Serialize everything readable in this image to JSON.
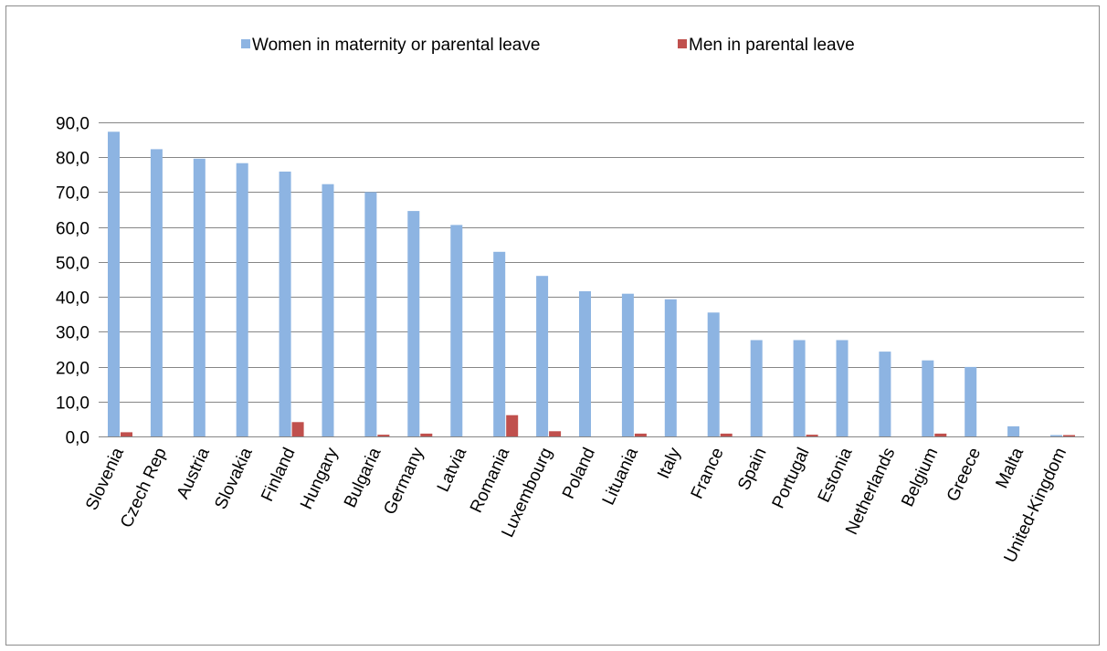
{
  "chart_data": {
    "type": "bar",
    "title": "",
    "xlabel": "",
    "ylabel": "",
    "ylim": [
      0,
      90
    ],
    "yticks": [
      "0,0",
      "10,0",
      "20,0",
      "30,0",
      "40,0",
      "50,0",
      "60,0",
      "70,0",
      "80,0",
      "90,0"
    ],
    "grid": true,
    "legend_position": "top",
    "categories": [
      "Slovenia",
      "Czech Rep",
      "Austria",
      "Slovakia",
      "Finland",
      "Hungary",
      "Bulgaria",
      "Germany",
      "Latvia",
      "Romania",
      "Luxembourg",
      "Poland",
      "Lituania",
      "Italy",
      "France",
      "Spain",
      "Portugal",
      "Estonia",
      "Netherlands",
      "Belgium",
      "Greece",
      "Malta",
      "United-Kingdom"
    ],
    "series": [
      {
        "name": "Women in maternity or parental leave",
        "color": "#8db4e2",
        "values": [
          87.3,
          82.3,
          79.6,
          78.3,
          75.9,
          72.3,
          70.0,
          64.6,
          60.6,
          52.9,
          46.0,
          41.6,
          40.9,
          39.3,
          35.5,
          27.6,
          27.6,
          27.6,
          24.3,
          21.8,
          19.9,
          2.9,
          0.4
        ]
      },
      {
        "name": "Men in parental leave",
        "color": "#c0504d",
        "values": [
          1.2,
          0.0,
          0.0,
          0.0,
          4.1,
          0.0,
          0.5,
          0.8,
          0.0,
          6.1,
          1.5,
          0.0,
          0.8,
          0.0,
          0.8,
          0.0,
          0.5,
          0.0,
          0.0,
          0.8,
          0.0,
          0.0,
          0.4
        ]
      }
    ]
  }
}
